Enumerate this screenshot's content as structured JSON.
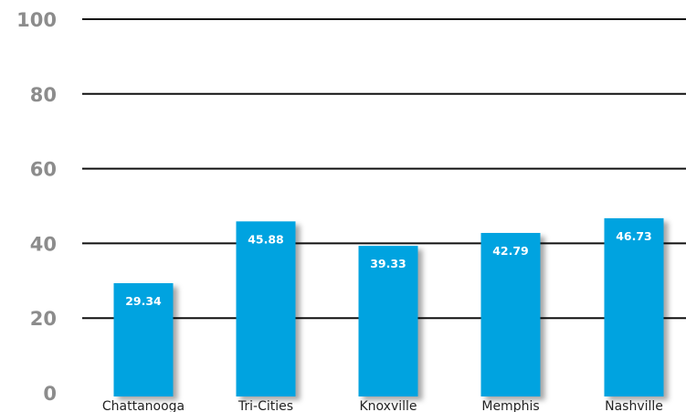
{
  "chart_data": {
    "type": "bar",
    "categories": [
      "Chattanooga",
      "Tri-Cities",
      "Knoxville",
      "Memphis",
      "Nashville"
    ],
    "values": [
      29.34,
      45.88,
      39.33,
      42.79,
      46.73
    ],
    "value_labels": [
      "29.34",
      "45.88",
      "39.33",
      "42.79",
      "46.73"
    ],
    "title": "",
    "xlabel": "",
    "ylabel": "",
    "ylim": [
      0,
      100
    ],
    "yticks": [
      0,
      20,
      40,
      60,
      80,
      100
    ],
    "ytick_labels": [
      "0",
      "20",
      "40",
      "60",
      "80",
      "100"
    ],
    "grid": true,
    "legend": "none",
    "bar_color": "#00a3e0",
    "bar_shadow": true
  }
}
